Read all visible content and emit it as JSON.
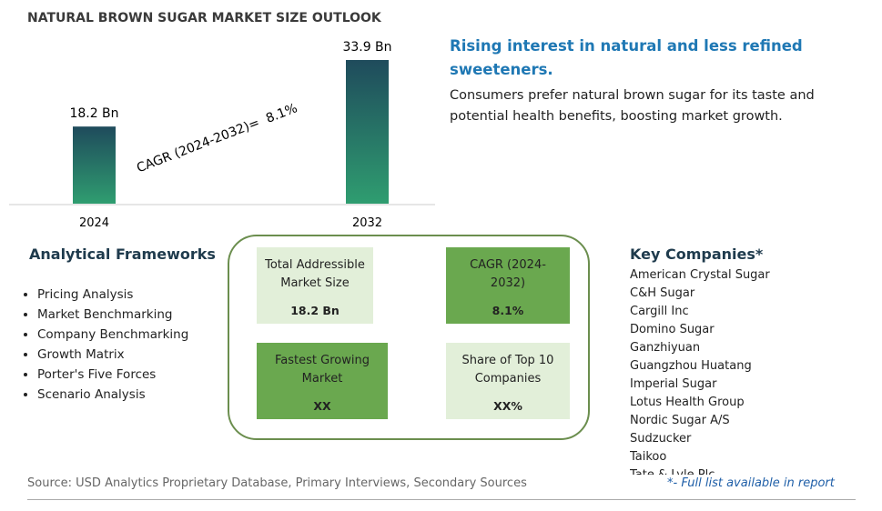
{
  "chart_data": {
    "type": "bar",
    "title": "NATURAL BROWN SUGAR MARKET SIZE OUTLOOK",
    "categories": [
      "2024",
      "2032"
    ],
    "values": [
      18.2,
      33.9
    ],
    "value_labels": [
      "18.2 Bn",
      "33.9 Bn"
    ],
    "annotation": "CAGR (2024-2032)=  8.1%"
  },
  "highlight": {
    "heading": "Rising interest in natural and less refined sweeteners.",
    "text": "Consumers prefer natural brown sugar for its taste and potential health benefits, boosting market growth."
  },
  "frameworks": {
    "title": "Analytical Frameworks",
    "items": [
      "Pricing Analysis",
      "Market Benchmarking",
      "Company Benchmarking",
      "Growth Matrix",
      "Porter's Five Forces",
      "Scenario Analysis"
    ]
  },
  "metrics": [
    {
      "label": "Total Addressible Market Size",
      "value": "18.2 Bn"
    },
    {
      "label": "CAGR (2024-2032)",
      "value": "8.1%"
    },
    {
      "label": "Fastest Growing Market",
      "value": "XX"
    },
    {
      "label": "Share of Top 10 Companies",
      "value": "XX%"
    }
  ],
  "companies": {
    "title": "Key Companies*",
    "items": [
      "American Crystal Sugar",
      "C&H Sugar",
      "Cargill Inc",
      "Domino Sugar",
      "Ganzhiyuan",
      "Guangzhou Huatang",
      "Imperial Sugar",
      "Lotus Health Group",
      "Nordic Sugar A/S",
      "Sudzucker",
      "Taikoo",
      "Tate & Lyle Plc"
    ],
    "note": "*- Full list available in report"
  },
  "source": "Source: USD Analytics Proprietary Database, Primary Interviews, Secondary Sources"
}
